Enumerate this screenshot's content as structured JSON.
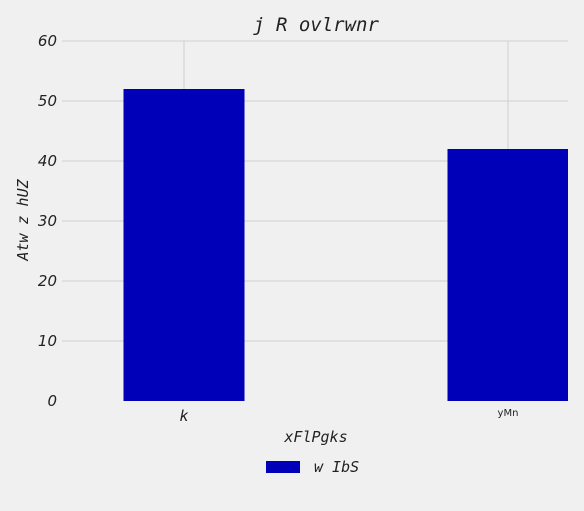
{
  "chart_data": {
    "type": "bar",
    "title": "j R  ovlrwnr",
    "xlabel": "xFlPgks",
    "ylabel": "Atw z  hUZ",
    "categories": [
      "k",
      "yMn"
    ],
    "series": [
      {
        "name": "w IbS",
        "values": [
          52,
          42
        ],
        "color": "#0000b8"
      }
    ],
    "ylim": [
      0,
      60
    ],
    "yticks": [
      0,
      10,
      20,
      30,
      40,
      50,
      60
    ],
    "grid": true,
    "legend": "bottom-center"
  }
}
